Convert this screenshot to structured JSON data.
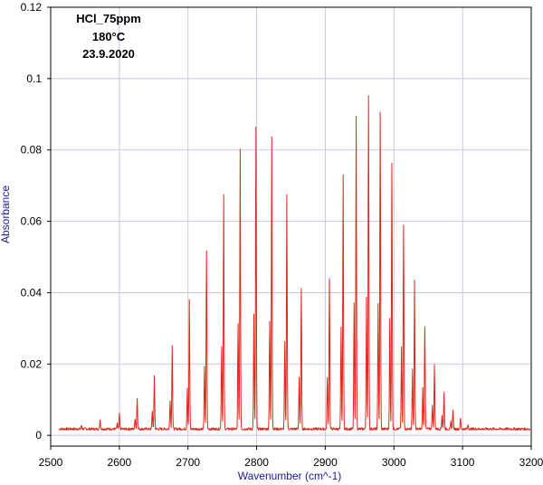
{
  "chart_data": {
    "type": "line",
    "title": "",
    "annotations": [
      "HCl_75ppm",
      "180°C",
      "23.9.2020"
    ],
    "xlabel": "Wavenumber (cm^-1)",
    "ylabel": "Absorbance",
    "xlim": [
      2500,
      3200
    ],
    "ylim": [
      -0.003,
      0.12
    ],
    "x_ticks": [
      2500,
      2600,
      2700,
      2800,
      2900,
      3000,
      3100,
      3200
    ],
    "y_ticks": [
      0,
      0.02,
      0.04,
      0.06,
      0.08,
      0.1,
      0.12
    ],
    "x_tick_labels": [
      "2500",
      "2600",
      "2700",
      "2800",
      "2900",
      "3000",
      "3100",
      "3200"
    ],
    "y_tick_labels": [
      "0",
      "0.02",
      "0.04",
      "0.06",
      "0.08",
      "0.1",
      "0.12"
    ],
    "grid": true,
    "baseline": 0.0018,
    "line_color": "#e0281c",
    "grid_color": "#c8c8e6",
    "series": [
      {
        "x": [
          2545,
          2572,
          2600,
          2626,
          2651,
          2677,
          2702,
          2727,
          2752,
          2776,
          2799,
          2822,
          2844,
          2865,
          2906,
          2926,
          2945,
          2963,
          2980,
          2997,
          3014,
          3030,
          3045,
          3059,
          3073,
          3086,
          3097,
          3108
        ],
        "y": [
          0.0028,
          0.0044,
          0.0062,
          0.0105,
          0.0168,
          0.0255,
          0.0378,
          0.0518,
          0.0672,
          0.0802,
          0.0862,
          0.0838,
          0.0678,
          0.0415,
          0.0442,
          0.073,
          0.0898,
          0.0955,
          0.0905,
          0.076,
          0.0588,
          0.0432,
          0.0307,
          0.02,
          0.0123,
          0.0074,
          0.0047,
          0.003
        ]
      },
      {
        "x": [
          2597,
          2623,
          2648,
          2674,
          2699,
          2724,
          2749,
          2773,
          2796,
          2819,
          2841,
          2862,
          2903,
          2923,
          2942,
          2960,
          2977,
          2994,
          3011,
          3027,
          3042,
          3056,
          3070,
          3083
        ],
        "y": [
          0.0032,
          0.0048,
          0.007,
          0.01,
          0.0135,
          0.0195,
          0.0252,
          0.0312,
          0.0338,
          0.032,
          0.0262,
          0.0162,
          0.0165,
          0.0302,
          0.0368,
          0.0388,
          0.0372,
          0.0328,
          0.0245,
          0.0185,
          0.0132,
          0.0088,
          0.0058,
          0.0038
        ]
      }
    ]
  }
}
